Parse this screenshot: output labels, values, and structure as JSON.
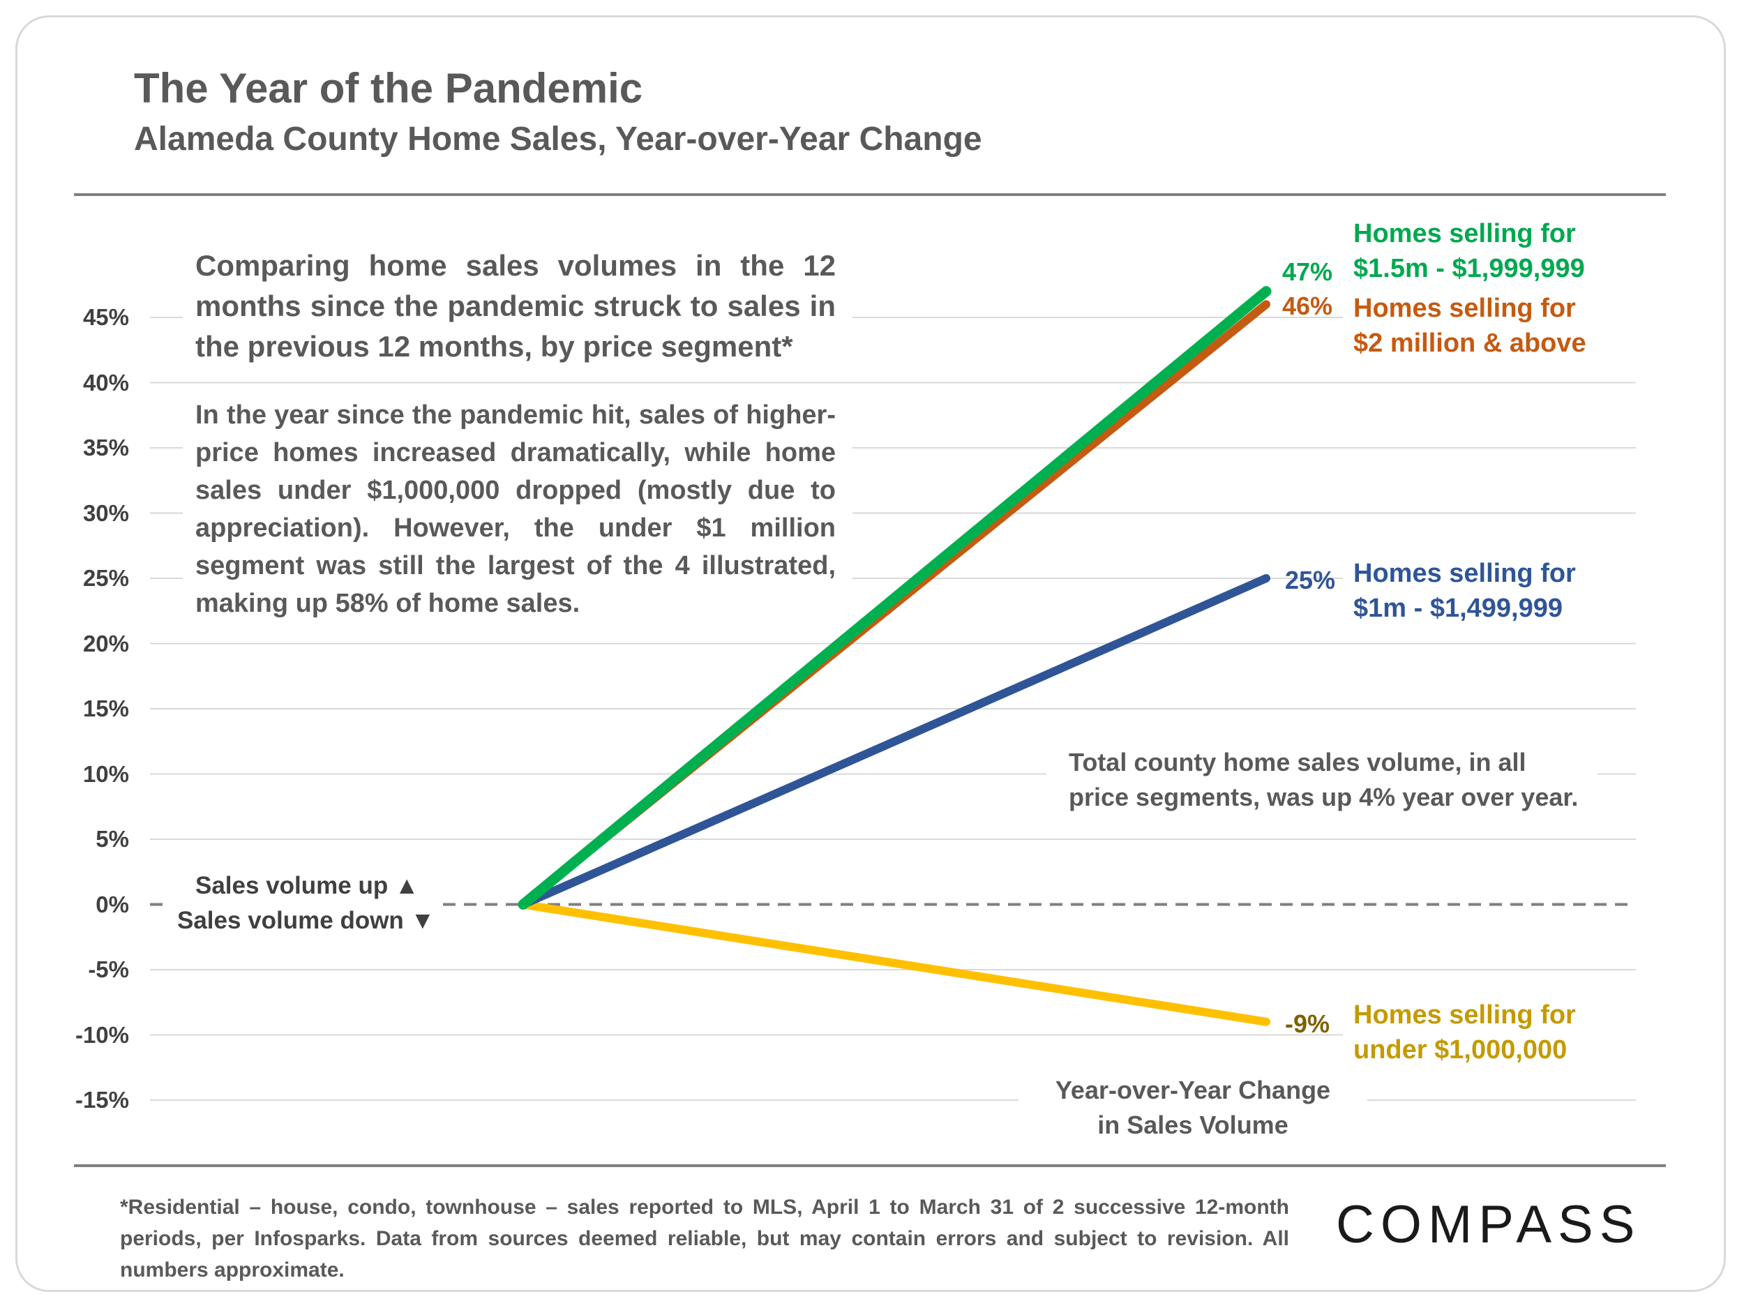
{
  "header": {
    "title": "The Year of the Pandemic",
    "subtitle": "Alameda County Home Sales, Year-over-Year Change"
  },
  "chart_data": {
    "type": "line",
    "title": "The Year of the Pandemic",
    "subtitle": "Alameda County Home Sales, Year-over-Year Change",
    "x": [
      0,
      1
    ],
    "ylim": [
      -15,
      45
    ],
    "yticks": [
      45,
      40,
      35,
      30,
      25,
      20,
      15,
      10,
      5,
      0,
      -5,
      -10,
      -15
    ],
    "ytick_labels": [
      "45%",
      "40%",
      "35%",
      "30%",
      "25%",
      "20%",
      "15%",
      "10%",
      "5%",
      "0%",
      "-5%",
      "-10%",
      "-15%"
    ],
    "grid": true,
    "series": [
      {
        "name": "Homes selling for $2 million & above",
        "values": [
          0,
          46
        ],
        "end_label": "46%",
        "color": "#c55a11",
        "label_color": "#c55a11",
        "label_lines": [
          "Homes selling for",
          "$2 million & above"
        ]
      },
      {
        "name": "Homes selling for $1.5m - $1,999,999",
        "values": [
          0,
          47
        ],
        "end_label": "47%",
        "color": "#00b050",
        "label_color": "#00a84f",
        "label_lines": [
          "Homes selling for",
          "$1.5m - $1,999,999"
        ]
      },
      {
        "name": "Homes selling for $1m - $1,499,999",
        "values": [
          0,
          25
        ],
        "end_label": "25%",
        "color": "#2f5597",
        "label_color": "#2f5597",
        "label_lines": [
          "Homes selling for",
          "$1m - $1,499,999"
        ]
      },
      {
        "name": "Homes selling for under $1,000,000",
        "values": [
          0,
          -9
        ],
        "end_label": "-9%",
        "color": "#ffc000",
        "label_color": "#7f6000",
        "label_lines": [
          "Homes selling for",
          "under $1,000,000"
        ]
      }
    ],
    "xlabel_lines": [
      "Year-over-Year Change",
      "in Sales Volume"
    ],
    "zero_labels": {
      "up": "Sales volume up ▲",
      "down": "Sales volume down ▼"
    }
  },
  "annotations": {
    "intro": "Comparing home sales volumes in the 12 months since the pandemic struck to sales in the previous 12 months, by price segment*",
    "detail": "In the year since the pandemic hit, sales of higher-price homes increased dramatically, while home sales under $1,000,000 dropped (mostly due to appreciation). However, the under $1 million segment was still the largest of the 4 illustrated, making up 58% of home sales.",
    "total_note": [
      "Total county home sales volume, in all",
      "price segments, was up 4% year over year."
    ]
  },
  "footer": {
    "footnote": "*Residential – house, condo, townhouse – sales reported to MLS, April 1 to March 31 of 2 successive 12-month periods, per Infosparks. Data from sources deemed reliable, but may contain errors and subject to revision. All numbers  approximate.",
    "logo": "COMPASS"
  },
  "colors": {
    "text": "#595959",
    "grid": "#d9d9d9",
    "zero_line": "#7f7f7f",
    "under_1m_value": "#7f6000",
    "under_1m_label": "#c49a00"
  }
}
